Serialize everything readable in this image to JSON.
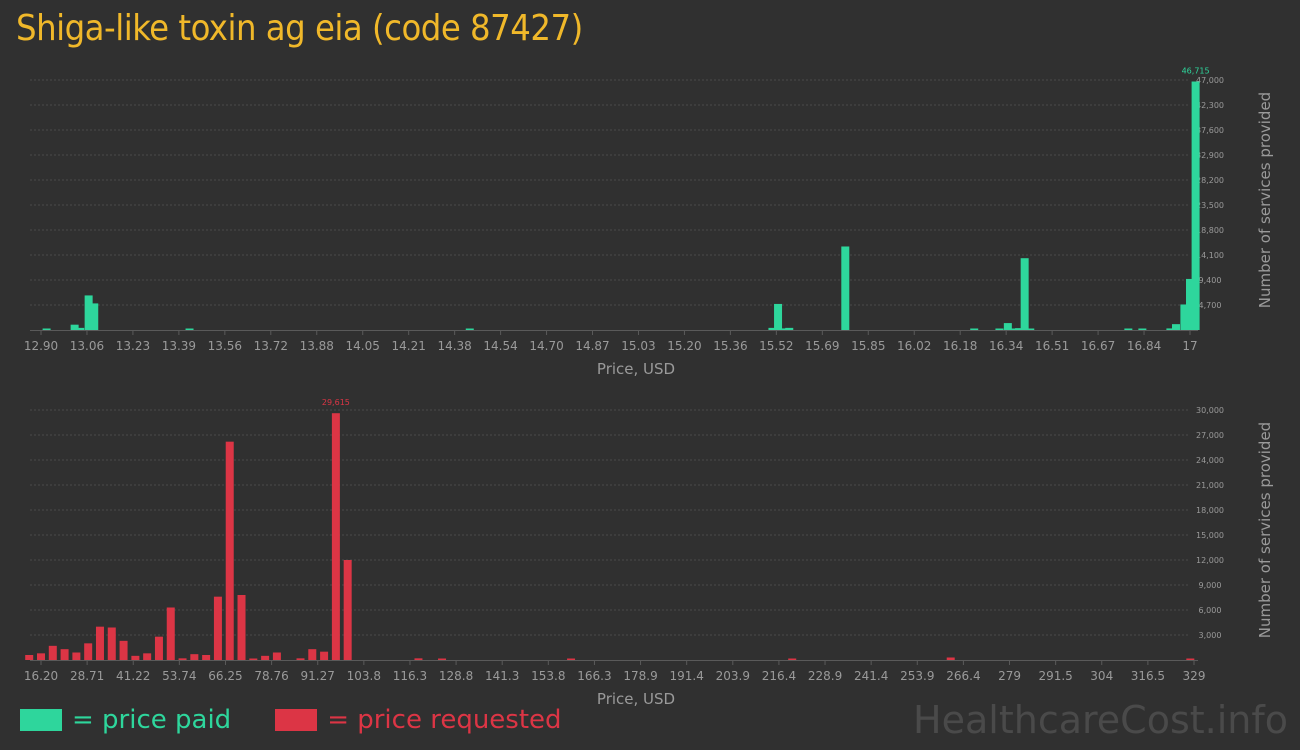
{
  "title": "Shiga-like toxin ag eia (code 87427)",
  "chart_data": [
    {
      "type": "bar",
      "name": "price paid",
      "color": "#2ed69c",
      "xlabel": "Price, USD",
      "ylabel": "Number of services provided",
      "x_ticks": [
        "12.90",
        "13.06",
        "13.23",
        "13.39",
        "13.56",
        "13.72",
        "13.88",
        "14.05",
        "14.21",
        "14.38",
        "14.54",
        "14.70",
        "14.87",
        "15.03",
        "15.20",
        "15.36",
        "15.52",
        "15.69",
        "15.85",
        "16.02",
        "16.18",
        "16.34",
        "16.51",
        "16.67",
        "16.84",
        "17"
      ],
      "y_ticks": [
        "4,700",
        "9,400",
        "14,100",
        "18,800",
        "23,500",
        "28,200",
        "32,900",
        "37,600",
        "42,300",
        "47,000"
      ],
      "ylim": [
        0,
        47000
      ],
      "peak_label": "46,715",
      "bars": [
        {
          "x": 12.92,
          "y": 150
        },
        {
          "x": 13.02,
          "y": 1000
        },
        {
          "x": 13.04,
          "y": 400
        },
        {
          "x": 13.07,
          "y": 6500
        },
        {
          "x": 13.09,
          "y": 5000
        },
        {
          "x": 13.43,
          "y": 150
        },
        {
          "x": 14.43,
          "y": 150
        },
        {
          "x": 15.51,
          "y": 400
        },
        {
          "x": 15.53,
          "y": 4900
        },
        {
          "x": 15.55,
          "y": 300
        },
        {
          "x": 15.57,
          "y": 400
        },
        {
          "x": 15.77,
          "y": 15700
        },
        {
          "x": 16.23,
          "y": 150
        },
        {
          "x": 16.32,
          "y": 200
        },
        {
          "x": 16.35,
          "y": 1300
        },
        {
          "x": 16.37,
          "y": 250
        },
        {
          "x": 16.39,
          "y": 350
        },
        {
          "x": 16.41,
          "y": 13500
        },
        {
          "x": 16.43,
          "y": 150
        },
        {
          "x": 16.78,
          "y": 250
        },
        {
          "x": 16.83,
          "y": 150
        },
        {
          "x": 16.93,
          "y": 300
        },
        {
          "x": 16.95,
          "y": 1100
        },
        {
          "x": 16.98,
          "y": 4800
        },
        {
          "x": 17.0,
          "y": 9600
        },
        {
          "x": 17.02,
          "y": 46715
        }
      ]
    },
    {
      "type": "bar",
      "name": "price requested",
      "color": "#dc3545",
      "xlabel": "Price, USD",
      "ylabel": "Number of services provided",
      "x_ticks": [
        "16.20",
        "28.71",
        "41.22",
        "53.74",
        "66.25",
        "78.76",
        "91.27",
        "103.8",
        "116.3",
        "128.8",
        "141.3",
        "153.8",
        "166.3",
        "178.9",
        "191.4",
        "203.9",
        "216.4",
        "228.9",
        "241.4",
        "253.9",
        "266.4",
        "279",
        "291.5",
        "304",
        "316.5",
        "329"
      ],
      "y_ticks": [
        "3,000",
        "6,000",
        "9,000",
        "12,000",
        "15,000",
        "18,000",
        "21,000",
        "24,000",
        "27,000",
        "30,000"
      ],
      "ylim": [
        0,
        30000
      ],
      "peak_label": "29,615",
      "bars": [
        {
          "x": 13.0,
          "y": 600
        },
        {
          "x": 16.2,
          "y": 800
        },
        {
          "x": 19.4,
          "y": 1700
        },
        {
          "x": 22.6,
          "y": 1300
        },
        {
          "x": 25.8,
          "y": 900
        },
        {
          "x": 29.0,
          "y": 2000
        },
        {
          "x": 32.2,
          "y": 4000
        },
        {
          "x": 35.4,
          "y": 3900
        },
        {
          "x": 38.6,
          "y": 2300
        },
        {
          "x": 41.8,
          "y": 500
        },
        {
          "x": 45.0,
          "y": 800
        },
        {
          "x": 48.2,
          "y": 2800
        },
        {
          "x": 51.4,
          "y": 6300
        },
        {
          "x": 54.6,
          "y": 200
        },
        {
          "x": 57.8,
          "y": 700
        },
        {
          "x": 61.0,
          "y": 600
        },
        {
          "x": 64.2,
          "y": 7600
        },
        {
          "x": 67.4,
          "y": 26200
        },
        {
          "x": 70.6,
          "y": 7800
        },
        {
          "x": 73.8,
          "y": 100
        },
        {
          "x": 77.0,
          "y": 500
        },
        {
          "x": 80.2,
          "y": 900
        },
        {
          "x": 86.6,
          "y": 200
        },
        {
          "x": 89.8,
          "y": 1300
        },
        {
          "x": 93.0,
          "y": 1000
        },
        {
          "x": 96.2,
          "y": 29615
        },
        {
          "x": 99.4,
          "y": 12000
        },
        {
          "x": 118.6,
          "y": 200
        },
        {
          "x": 125.0,
          "y": 100
        },
        {
          "x": 160.0,
          "y": 100
        },
        {
          "x": 220.0,
          "y": 100
        },
        {
          "x": 263.0,
          "y": 300
        },
        {
          "x": 328.0,
          "y": 100
        }
      ]
    }
  ],
  "legend": [
    {
      "label": "= price paid",
      "color": "#2ed69c"
    },
    {
      "label": "= price requested",
      "color": "#dc3545"
    }
  ],
  "watermark": "HealthcareCost.info"
}
